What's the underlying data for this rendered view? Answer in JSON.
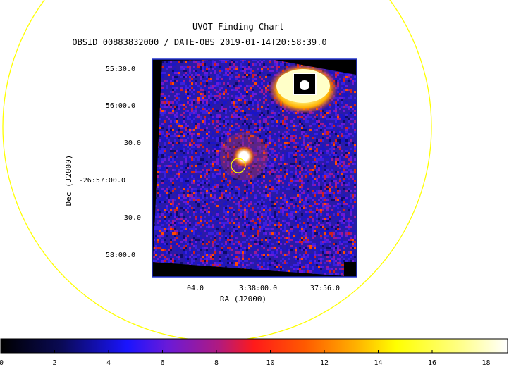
{
  "title": "UVOT Finding Chart",
  "subtitle": "OBSID 00883832000 / DATE-OBS 2019-01-14T20:58:39.0",
  "axes": {
    "x_label": "RA (J2000)",
    "y_label": "Dec (J2000)",
    "x_ticks": [
      "04.0",
      "3:38:00.0",
      "37:56.0"
    ],
    "y_ticks": [
      "55:30.0",
      "56:00.0",
      "30.0",
      "-26:57:00.0",
      "30.0",
      "58:00.0"
    ]
  },
  "colorbar": {
    "ticks": [
      "0",
      "2",
      "4",
      "6",
      "8",
      "10",
      "12",
      "14",
      "16",
      "18"
    ]
  },
  "colors": {
    "field_circle": "#ffff00",
    "target_marker": "#ffff00",
    "frame": "#2233cc",
    "image_background": "#2a1aa8"
  }
}
